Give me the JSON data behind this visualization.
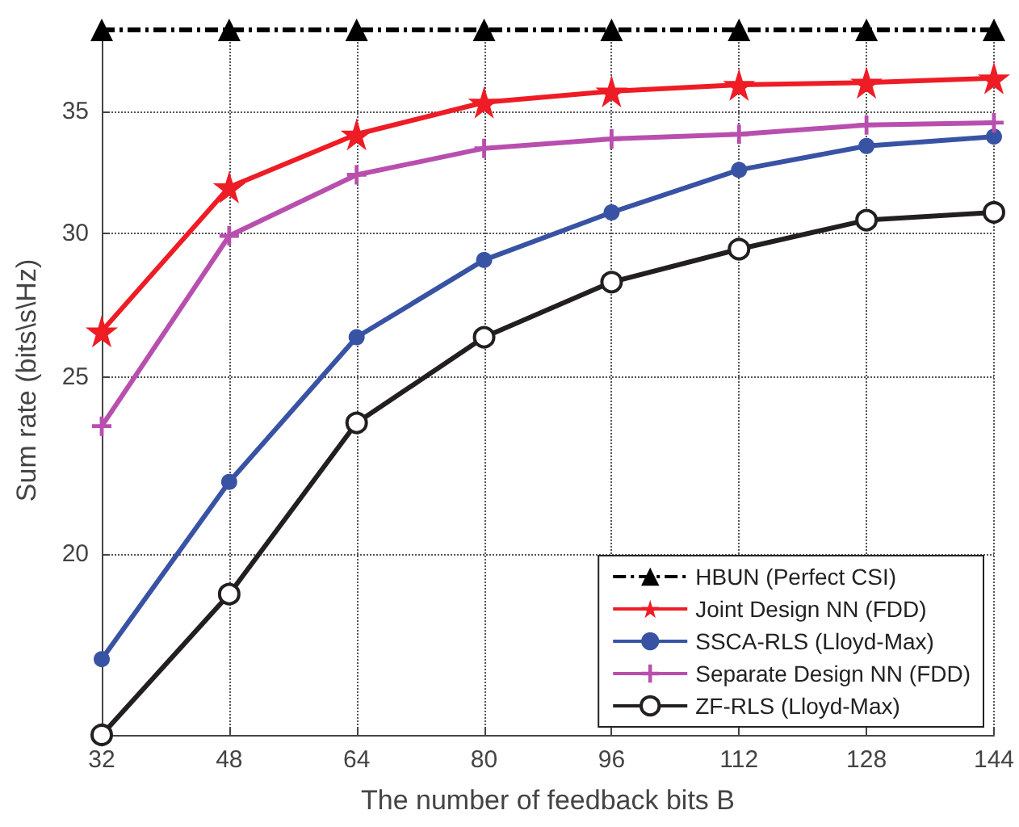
{
  "chart_data": {
    "type": "line",
    "xlabel": "The number of feedback bits B",
    "ylabel": "Sum rate (bits\\s\\Hz)",
    "x": [
      32,
      48,
      64,
      80,
      96,
      112,
      128,
      144
    ],
    "series": [
      {
        "name": "HBUN (Perfect CSI)",
        "color": "#000000",
        "marker": "triangle",
        "line_style": "dashed",
        "values": [
          38.8,
          38.8,
          38.8,
          38.8,
          38.8,
          38.8,
          38.8,
          38.8
        ]
      },
      {
        "name": "Joint Design NN (FDD)",
        "color": "#ee1c25",
        "marker": "star",
        "line_style": "solid",
        "values": [
          26.5,
          31.8,
          34.0,
          35.4,
          35.9,
          36.2,
          36.3,
          36.5
        ]
      },
      {
        "name": "SSCA-RLS (Lloyd-Max)",
        "color": "#3953a4",
        "marker": "circle",
        "line_style": "solid",
        "values": [
          17.5,
          21.9,
          26.3,
          29.0,
          30.8,
          32.5,
          33.5,
          33.9
        ]
      },
      {
        "name": "Separate Design NN (FDD)",
        "color": "#b84fae",
        "marker": "cross",
        "line_style": "solid",
        "values": [
          23.5,
          29.9,
          32.3,
          33.4,
          33.8,
          34.0,
          34.4,
          34.5
        ]
      },
      {
        "name": "ZF-RLS (Lloyd-Max)",
        "color": "#231f20",
        "marker": "open-circle",
        "line_style": "solid",
        "values": [
          15.9,
          19.0,
          23.6,
          26.3,
          28.2,
          29.4,
          30.5,
          30.8
        ]
      }
    ],
    "xlim": [
      32,
      144
    ],
    "xticks": [
      32,
      48,
      64,
      80,
      96,
      112,
      128,
      144
    ],
    "ylim": [
      15.9,
      39
    ],
    "yticks": [
      20,
      25,
      30,
      35
    ],
    "log": "y",
    "grid": true,
    "legend": "bottom right"
  }
}
